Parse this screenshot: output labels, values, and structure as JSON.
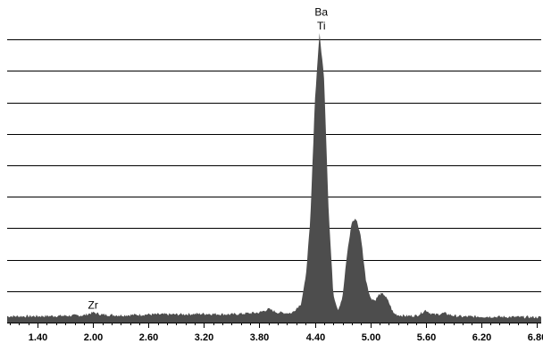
{
  "chart_data": {
    "type": "area",
    "title": "",
    "xlabel": "",
    "ylabel": "",
    "xlim": [
      1.07,
      6.85
    ],
    "ylim": [
      0,
      100
    ],
    "grid": true,
    "x_ticks": [
      "1.40",
      "2.00",
      "2.60",
      "3.20",
      "3.80",
      "4.40",
      "5.00",
      "5.60",
      "6.20",
      "6.80"
    ],
    "x_tick_values": [
      1.4,
      2.0,
      2.6,
      3.2,
      3.8,
      4.4,
      5.0,
      5.6,
      6.2,
      6.8
    ],
    "y_gridlines": [
      10,
      20,
      30,
      40,
      50,
      60,
      70,
      80,
      90
    ],
    "fill_color": "#4d4d4d",
    "series": [
      {
        "x": [
          1.07,
          1.3,
          1.6,
          1.9,
          2.0,
          2.1,
          2.3,
          2.6,
          2.9,
          3.2,
          3.5,
          3.8,
          3.9,
          4.0,
          4.15,
          4.25,
          4.3,
          4.35,
          4.4,
          4.45,
          4.5,
          4.55,
          4.6,
          4.65,
          4.7,
          4.75,
          4.8,
          4.85,
          4.9,
          4.95,
          5.0,
          5.05,
          5.1,
          5.15,
          5.2,
          5.25,
          5.3,
          5.4,
          5.5,
          5.55,
          5.6,
          5.65,
          5.7,
          5.8,
          5.9,
          6.0,
          6.2,
          6.5,
          6.85
        ],
        "values": [
          2.0,
          2.0,
          2.1,
          2.3,
          3.2,
          2.5,
          2.3,
          2.6,
          2.6,
          2.8,
          2.6,
          3.2,
          4.3,
          3.2,
          3.0,
          6.0,
          14.0,
          32.0,
          70.0,
          92.0,
          78.0,
          35.0,
          9.0,
          4.0,
          8.0,
          22.0,
          32.0,
          33.0,
          27.0,
          14.0,
          8.0,
          7.0,
          9.0,
          9.0,
          6.5,
          3.0,
          2.4,
          2.1,
          2.2,
          3.0,
          4.0,
          3.0,
          2.5,
          3.0,
          2.2,
          1.9,
          1.9,
          1.8,
          1.7
        ]
      }
    ],
    "annotations": [
      {
        "text": "Zr",
        "x": 2.0,
        "y": 3.2
      },
      {
        "text": "Ba",
        "x": 4.47,
        "y": 96.5
      },
      {
        "text": "Ti",
        "x": 4.47,
        "y": 92.0
      }
    ]
  }
}
